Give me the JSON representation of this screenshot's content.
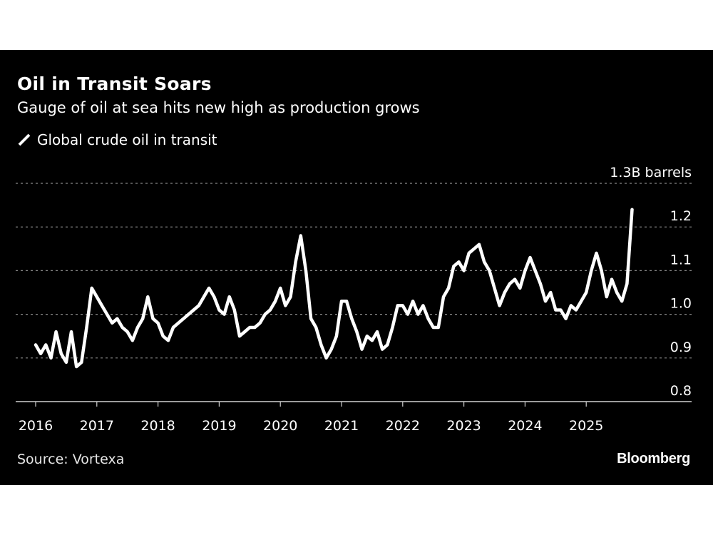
{
  "title": "Oil in Transit Soars",
  "subtitle": "Gauge of oil at sea hits new high as production grows",
  "source": "Source: Vortexa",
  "logo": "Bloomberg",
  "colors": {
    "background": "#000000",
    "line": "#ffffff",
    "grid": "#8a8a8a",
    "text": "#ffffff"
  },
  "chart_data": {
    "type": "line",
    "title": "Oil in Transit Soars",
    "subtitle": "Gauge of oil at sea hits new high as production grows",
    "ylabel": "",
    "y_unit": "B barrels",
    "ylim": [
      0.8,
      1.3
    ],
    "yticks": [
      {
        "value": 0.8,
        "label": "0.8"
      },
      {
        "value": 0.9,
        "label": "0.9"
      },
      {
        "value": 1.0,
        "label": "1.0"
      },
      {
        "value": 1.1,
        "label": "1.1"
      },
      {
        "value": 1.2,
        "label": "1.2"
      },
      {
        "value": 1.3,
        "label": "1.3B barrels"
      }
    ],
    "xlim": [
      2016,
      2026.1
    ],
    "xticks": [
      "2016",
      "2017",
      "2018",
      "2019",
      "2020",
      "2021",
      "2022",
      "2023",
      "2024",
      "2025"
    ],
    "grid": true,
    "legend_placement": "top-left",
    "series": [
      {
        "name": "Global crude oil in transit",
        "color": "#ffffff",
        "start": "2016-01",
        "frequency": "monthly",
        "values": [
          0.93,
          0.91,
          0.93,
          0.9,
          0.96,
          0.91,
          0.89,
          0.96,
          0.88,
          0.89,
          0.97,
          1.06,
          1.04,
          1.02,
          1.0,
          0.98,
          0.99,
          0.97,
          0.96,
          0.94,
          0.97,
          0.99,
          1.04,
          0.99,
          0.98,
          0.95,
          0.94,
          0.97,
          0.98,
          0.99,
          1.0,
          1.01,
          1.02,
          1.04,
          1.06,
          1.04,
          1.01,
          1.0,
          1.04,
          1.01,
          0.95,
          0.96,
          0.97,
          0.97,
          0.98,
          1.0,
          1.01,
          1.03,
          1.06,
          1.02,
          1.04,
          1.12,
          1.18,
          1.1,
          0.99,
          0.97,
          0.93,
          0.9,
          0.92,
          0.95,
          1.03,
          1.03,
          0.99,
          0.96,
          0.92,
          0.95,
          0.94,
          0.96,
          0.92,
          0.93,
          0.97,
          1.02,
          1.02,
          1.0,
          1.03,
          1.0,
          1.02,
          0.99,
          0.97,
          0.97,
          1.04,
          1.06,
          1.11,
          1.12,
          1.1,
          1.14,
          1.15,
          1.16,
          1.12,
          1.1,
          1.06,
          1.02,
          1.05,
          1.07,
          1.08,
          1.06,
          1.1,
          1.13,
          1.1,
          1.07,
          1.03,
          1.05,
          1.01,
          1.01,
          0.99,
          1.02,
          1.01,
          1.03,
          1.05,
          1.1,
          1.14,
          1.1,
          1.04,
          1.08,
          1.05,
          1.03,
          1.07,
          1.24
        ]
      }
    ]
  }
}
